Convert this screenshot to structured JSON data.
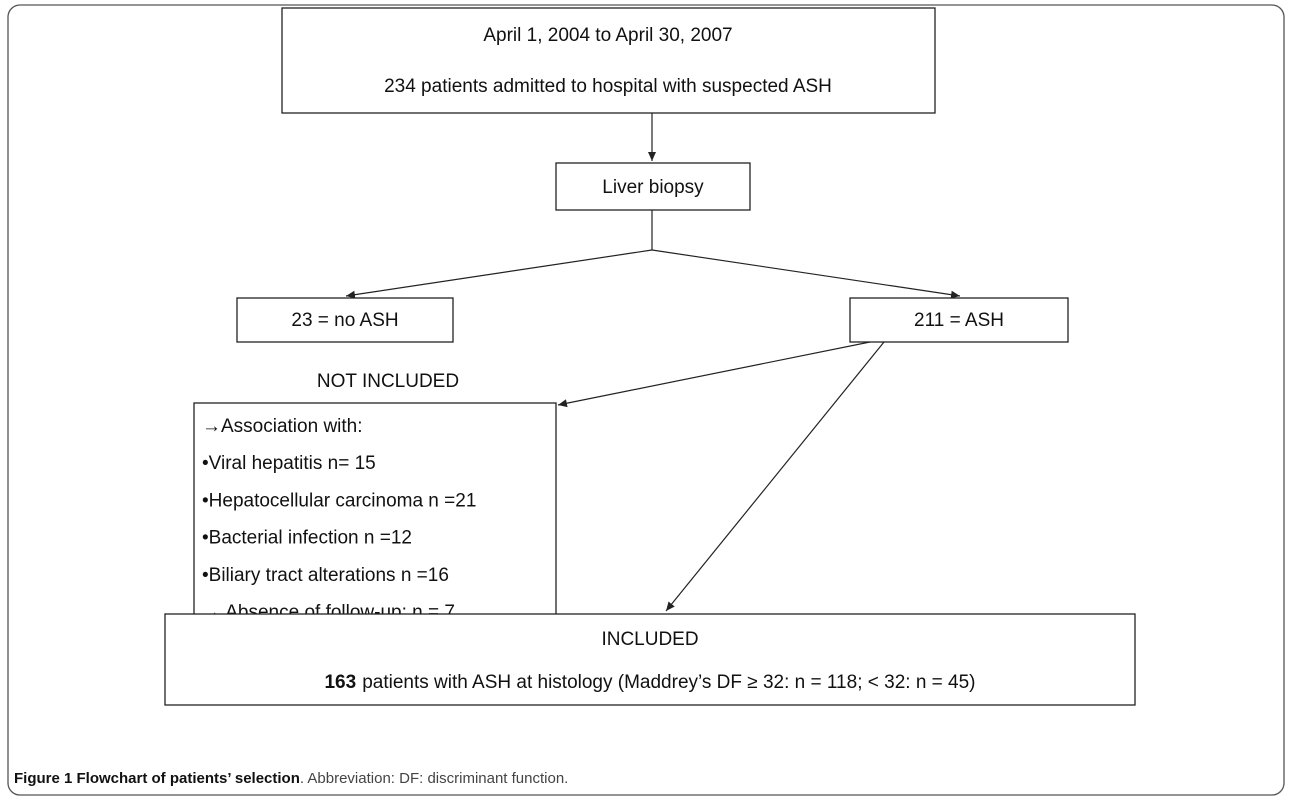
{
  "boxes": {
    "period": {
      "line1": "April 1, 2004 to April 30, 2007",
      "line2": "234 patients admitted to hospital with suspected ASH"
    },
    "biopsy": "Liver biopsy",
    "no_ash": "23 = no ASH",
    "ash": "211 = ASH",
    "not_included": {
      "heading": "NOT INCLUDED",
      "items": [
        "→Association with:",
        "•Viral hepatitis n= 15",
        "•Hepatocellular carcinoma n =21",
        "•Bacterial infection n =12",
        "•Biliary tract alterations n =16",
        "→ Absence of follow-up: n = 7"
      ]
    },
    "included": {
      "heading": "INCLUDED",
      "count": "163",
      "detail": "patients with ASH at histology (Maddrey’s DF ≥ 32: n = 118; < 32: n = 45)"
    }
  },
  "caption": {
    "title": "Figure 1 Flowchart of patients’ selection",
    "note": ". Abbreviation: DF: discriminant function."
  }
}
